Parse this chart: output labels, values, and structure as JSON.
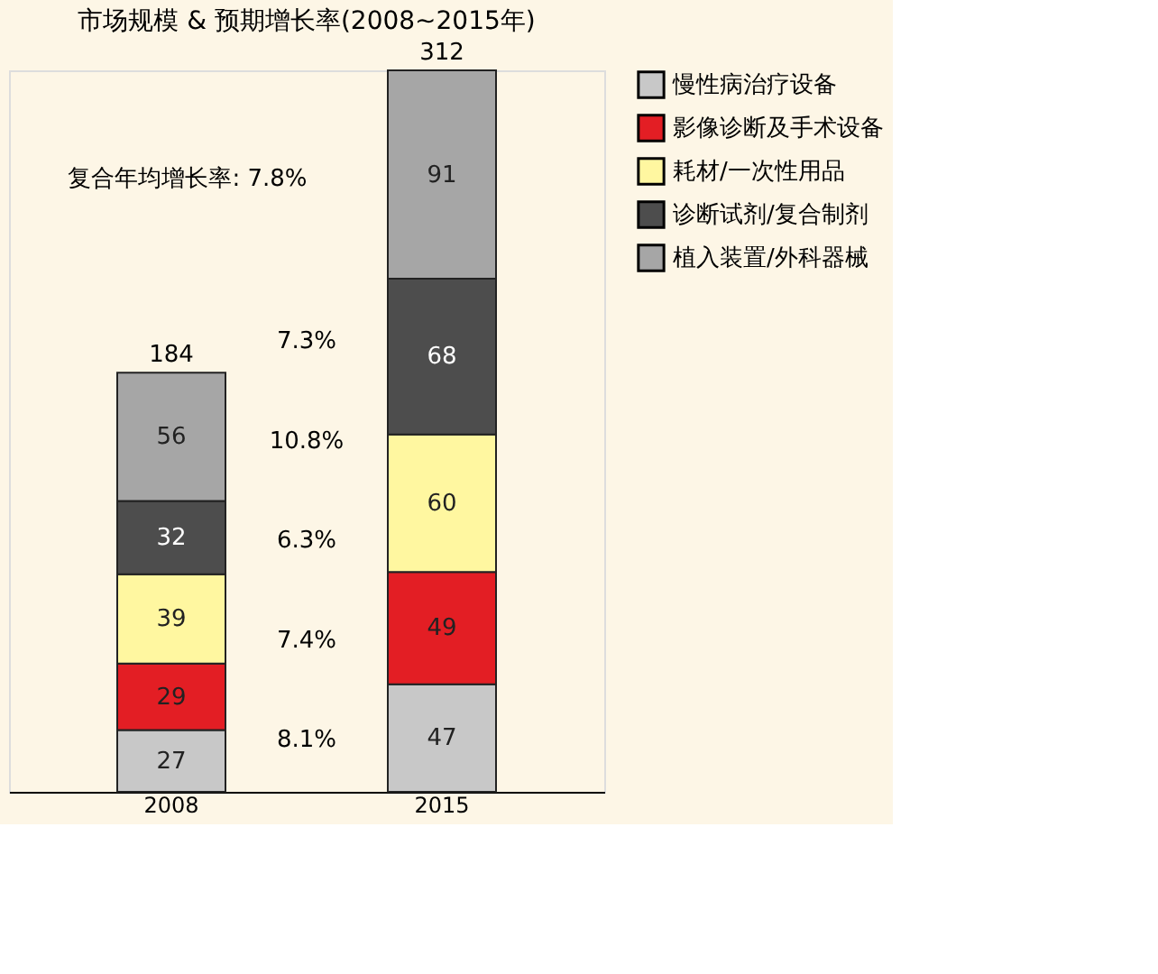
{
  "chart_data": {
    "type": "bar",
    "title": "市场规模 & 预期增长率(2008~2015年)",
    "categories": [
      "2008",
      "2015"
    ],
    "stacked": true,
    "data_labels": true,
    "legend": "right",
    "grid": false,
    "series": [
      {
        "name": "慢性病治疗设备",
        "color": "#c8c8c8",
        "values": [
          27,
          47
        ]
      },
      {
        "name": "影像诊断及手术设备",
        "color": "#e31e24",
        "values": [
          29,
          49
        ]
      },
      {
        "name": "耗材/一次性用品",
        "color": "#fff7a0",
        "values": [
          39,
          60
        ]
      },
      {
        "name": "诊断试剂/复合制剂",
        "color": "#4d4d4d",
        "values": [
          32,
          68
        ]
      },
      {
        "name": "植入装置/外科器械",
        "color": "#a6a6a6",
        "values": [
          56,
          91
        ]
      }
    ],
    "totals": [
      "184",
      "312"
    ],
    "annotations": [
      "复合年均增长率: 7.8%",
      "7.3%",
      "10.8%",
      "6.3%",
      "7.4%",
      "8.1%"
    ]
  }
}
